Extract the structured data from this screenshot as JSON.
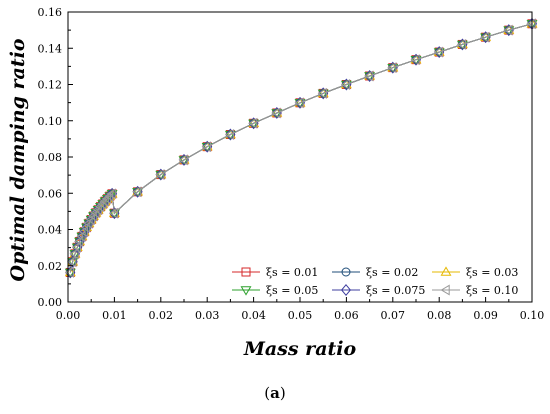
{
  "caption": {
    "open": "(",
    "letter": "a",
    "close": ")"
  },
  "chart_data": {
    "type": "line",
    "xlabel": "Mass ratio",
    "ylabel": "Optimal damping ratio",
    "xlim": [
      0.0,
      0.1
    ],
    "ylim": [
      0.0,
      0.16
    ],
    "xticks": [
      "0.00",
      "0.01",
      "0.02",
      "0.03",
      "0.04",
      "0.05",
      "0.06",
      "0.07",
      "0.08",
      "0.09",
      "0.10"
    ],
    "yticks": [
      "0.00",
      "0.02",
      "0.04",
      "0.06",
      "0.08",
      "0.10",
      "0.12",
      "0.14",
      "0.16"
    ],
    "grid": false,
    "legend_position": "bottom-right",
    "x": [
      0.0005,
      0.001,
      0.0015,
      0.002,
      0.0025,
      0.003,
      0.0035,
      0.004,
      0.0045,
      0.005,
      0.0055,
      0.006,
      0.0065,
      0.007,
      0.0075,
      0.008,
      0.0085,
      0.009,
      0.0095,
      0.01,
      0.015,
      0.02,
      0.025,
      0.03,
      0.035,
      0.04,
      0.045,
      0.05,
      0.055,
      0.06,
      0.065,
      0.07,
      0.075,
      0.08,
      0.085,
      0.09,
      0.095,
      0.1
    ],
    "series": [
      {
        "name": "ξs = 0.01",
        "color": "#d62728",
        "marker": "square",
        "values": [
          0.0163,
          0.0222,
          0.0266,
          0.0302,
          0.0334,
          0.0362,
          0.0388,
          0.0412,
          0.0434,
          0.0455,
          0.0474,
          0.0492,
          0.0509,
          0.0526,
          0.0541,
          0.0556,
          0.057,
          0.0584,
          0.0597,
          0.049,
          0.0608,
          0.0703,
          0.0784,
          0.0857,
          0.0924,
          0.0986,
          0.1043,
          0.1099,
          0.1151,
          0.12,
          0.1247,
          0.1293,
          0.1337,
          0.1379,
          0.1421,
          0.1461,
          0.15,
          0.1535
        ]
      },
      {
        "name": "ξs = 0.02",
        "color": "#1f4e79",
        "marker": "circle",
        "values": [
          0.0163,
          0.0222,
          0.0266,
          0.0302,
          0.0334,
          0.0362,
          0.0388,
          0.0412,
          0.0434,
          0.0455,
          0.0474,
          0.0492,
          0.0509,
          0.0526,
          0.0541,
          0.0556,
          0.057,
          0.0584,
          0.0597,
          0.049,
          0.0608,
          0.0703,
          0.0784,
          0.0857,
          0.0924,
          0.0986,
          0.1043,
          0.1099,
          0.1151,
          0.12,
          0.1247,
          0.1293,
          0.1337,
          0.1379,
          0.1421,
          0.1461,
          0.15,
          0.1535
        ]
      },
      {
        "name": "ξs = 0.03",
        "color": "#e6b800",
        "marker": "triangle-up",
        "values": [
          0.0163,
          0.0222,
          0.0266,
          0.0302,
          0.0334,
          0.0362,
          0.0388,
          0.0412,
          0.0434,
          0.0455,
          0.0474,
          0.0492,
          0.0509,
          0.0526,
          0.0541,
          0.0556,
          0.057,
          0.0584,
          0.0597,
          0.049,
          0.0608,
          0.0703,
          0.0784,
          0.0857,
          0.0924,
          0.0986,
          0.1043,
          0.1099,
          0.1151,
          0.12,
          0.1247,
          0.1293,
          0.1337,
          0.1379,
          0.1421,
          0.1461,
          0.15,
          0.1535
        ]
      },
      {
        "name": "ξs = 0.05",
        "color": "#2ca02c",
        "marker": "triangle-down",
        "values": [
          0.0163,
          0.0222,
          0.0266,
          0.0302,
          0.0334,
          0.0362,
          0.0388,
          0.0412,
          0.0434,
          0.0455,
          0.0474,
          0.0492,
          0.0509,
          0.0526,
          0.0541,
          0.0556,
          0.057,
          0.0584,
          0.0597,
          0.049,
          0.0608,
          0.0703,
          0.0784,
          0.0857,
          0.0924,
          0.0986,
          0.1043,
          0.1099,
          0.1151,
          0.12,
          0.1247,
          0.1293,
          0.1337,
          0.1379,
          0.1421,
          0.1461,
          0.15,
          0.1535
        ]
      },
      {
        "name": "ξs = 0.075",
        "color": "#3f3f9f",
        "marker": "diamond",
        "values": [
          0.0163,
          0.0222,
          0.0266,
          0.0302,
          0.0334,
          0.0362,
          0.0388,
          0.0412,
          0.0434,
          0.0455,
          0.0474,
          0.0492,
          0.0509,
          0.0526,
          0.0541,
          0.0556,
          0.057,
          0.0584,
          0.0597,
          0.049,
          0.0608,
          0.0703,
          0.0784,
          0.0857,
          0.0924,
          0.0986,
          0.1043,
          0.1099,
          0.1151,
          0.12,
          0.1247,
          0.1293,
          0.1337,
          0.1379,
          0.1421,
          0.1461,
          0.15,
          0.1535
        ]
      },
      {
        "name": "ξs = 0.10",
        "color": "#9a9a9a",
        "marker": "triangle-left",
        "values": [
          0.0163,
          0.0222,
          0.0266,
          0.0302,
          0.0334,
          0.0362,
          0.0388,
          0.0412,
          0.0434,
          0.0455,
          0.0474,
          0.0492,
          0.0509,
          0.0526,
          0.0541,
          0.0556,
          0.057,
          0.0584,
          0.0597,
          0.049,
          0.0608,
          0.0703,
          0.0784,
          0.0857,
          0.0924,
          0.0986,
          0.1043,
          0.1099,
          0.1151,
          0.12,
          0.1247,
          0.1293,
          0.1337,
          0.1379,
          0.1421,
          0.1461,
          0.15,
          0.1535
        ]
      }
    ]
  }
}
